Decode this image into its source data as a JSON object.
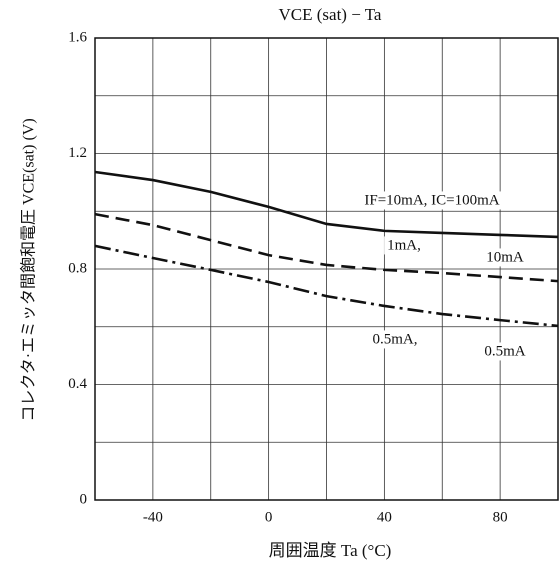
{
  "chart_data": {
    "type": "line",
    "title": "VCE (sat) − Ta",
    "x_label": "周囲温度  Ta  (°C)",
    "y_label": "コレクタ·エミッタ間飽和電圧   VCE(sat)   (V)",
    "x": [
      -60,
      -40,
      -20,
      0,
      20,
      40,
      60,
      80,
      100
    ],
    "series": [
      {
        "values": [
          1.136,
          1.108,
          1.067,
          1.015,
          0.956,
          0.932,
          0.925,
          0.918,
          0.911
        ],
        "color": "#111111",
        "dash": "solid"
      },
      {
        "values": [
          0.99,
          0.952,
          0.9,
          0.848,
          0.814,
          0.797,
          0.786,
          0.772,
          0.758
        ],
        "color": "#111111",
        "dash": "dashed"
      },
      {
        "values": [
          0.88,
          0.838,
          0.797,
          0.755,
          0.706,
          0.672,
          0.644,
          0.623,
          0.603
        ],
        "color": "#111111",
        "dash": "dashdot"
      }
    ],
    "annotations": [
      "IF=10mA, IC=100mA",
      "1mA,",
      "10mA",
      "0.5mA,",
      "0.5mA"
    ],
    "xlim": [
      -60,
      100
    ],
    "ylim": [
      0,
      1.6
    ],
    "xticks": [
      -40,
      0,
      40,
      80
    ],
    "yticks": [
      0,
      0.4,
      0.8,
      1.2,
      1.6
    ],
    "xminor": [
      -20,
      20,
      60
    ],
    "yminor": [
      0.2,
      0.6,
      1.0,
      1.4
    ],
    "grid": true
  }
}
